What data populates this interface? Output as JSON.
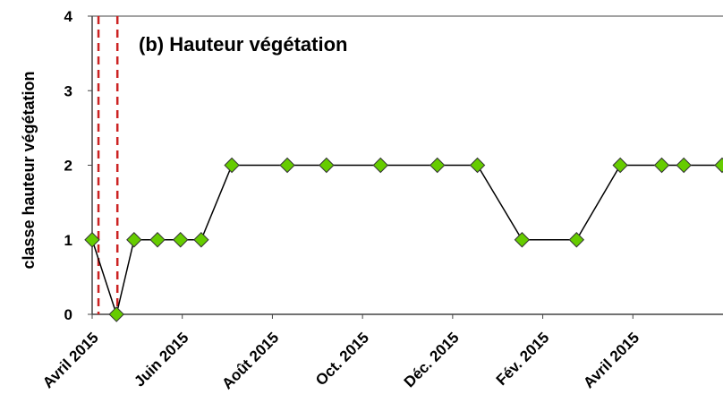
{
  "chart_data": {
    "type": "line",
    "title": "(b) Hauteur végétation",
    "y_label": "classe hauteur végétation",
    "x": [
      0,
      0.54,
      0.93,
      1.45,
      1.96,
      2.42,
      3.1,
      4.33,
      5.2,
      6.4,
      7.66,
      8.55,
      9.54,
      10.75,
      11.72,
      12.64,
      13.13,
      13.98
    ],
    "series": [
      {
        "name": "classe hauteur végétation",
        "color": "#000000",
        "marker_color": "#66cc00",
        "values": [
          1,
          0,
          1,
          1,
          1,
          1,
          2,
          2,
          2,
          2,
          2,
          2,
          1,
          1,
          2,
          2,
          2,
          2
        ]
      }
    ],
    "xlim": [
      0,
      14
    ],
    "xticks": [
      {
        "value": 0,
        "label": "Avril 2015"
      },
      {
        "value": 2,
        "label": "Juin 2015"
      },
      {
        "value": 4,
        "label": "Août 2015"
      },
      {
        "value": 6,
        "label": "Oct. 2015"
      },
      {
        "value": 8,
        "label": "Déc. 2015"
      },
      {
        "value": 10,
        "label": "Fév. 2015"
      },
      {
        "value": 12,
        "label": "Avril 2015"
      }
    ],
    "ylim": [
      0,
      4
    ],
    "yticks": [
      0,
      1,
      2,
      3,
      4
    ],
    "event_lines": [
      0.14,
      0.56
    ],
    "event_color": "#cc2222",
    "grid": false
  }
}
